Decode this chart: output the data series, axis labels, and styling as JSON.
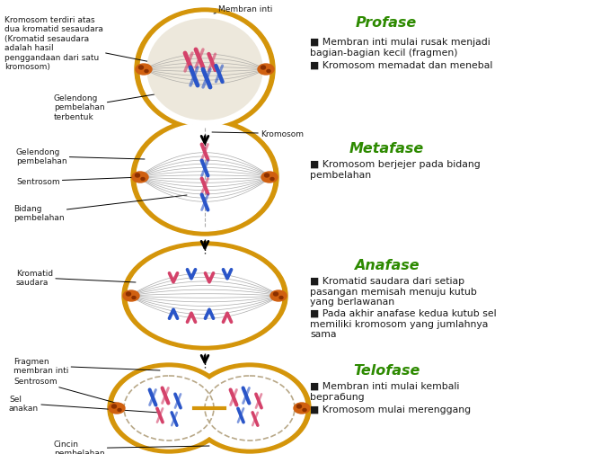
{
  "bg_color": "#ffffff",
  "green_color": "#2d8a00",
  "text_color": "#1a1a1a",
  "cell_outer_color": "#d4950a",
  "pink_chr": "#d4426a",
  "blue_chr": "#2a55c8",
  "orange_centrosome": "#d06010",
  "profase_bullets": [
    "Membran inti mulai rusak menjadi\nbagian-bagian kecil (fragmen)",
    "Kromosom memadat dan menebal"
  ],
  "metafase_bullets": [
    "Kromosom berjejer pada bidang\npembelahan"
  ],
  "anafase_bullets": [
    "Kromatid saudara dari setiap\npasangan memisah menuju kutub\nyang berlawanan",
    "Pada akhir anafase kedua kutub sel\nmemiliki kromosom yang jumlahnya\nsama"
  ],
  "telofase_bullets": [
    "Membran inti mulai kembali\nbергабung",
    "Kromosom mulai merenggang"
  ]
}
